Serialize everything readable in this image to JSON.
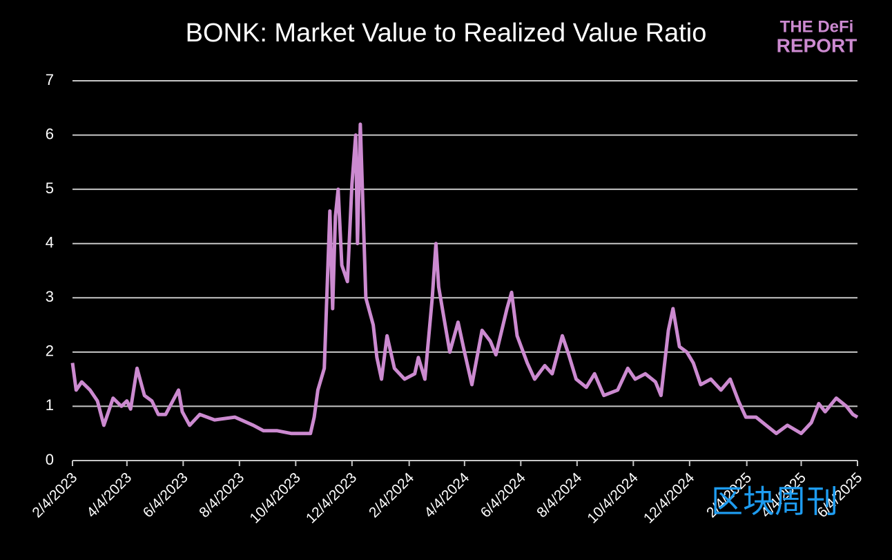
{
  "chart_data": {
    "type": "line",
    "title": "BONK: Market Value to Realized Value Ratio",
    "logo": [
      "THE DeFi",
      "REPORT"
    ],
    "watermark": "区块周刊",
    "x": [
      "2023-02-04",
      "2023-02-08",
      "2023-02-14",
      "2023-02-23",
      "2023-03-03",
      "2023-03-10",
      "2023-03-20",
      "2023-03-29",
      "2023-04-04",
      "2023-04-08",
      "2023-04-15",
      "2023-04-23",
      "2023-05-01",
      "2023-05-08",
      "2023-05-16",
      "2023-05-30",
      "2023-06-03",
      "2023-06-11",
      "2023-06-22",
      "2023-07-08",
      "2023-07-30",
      "2023-08-19",
      "2023-08-30",
      "2023-09-14",
      "2023-09-29",
      "2023-10-12",
      "2023-10-20",
      "2023-10-24",
      "2023-10-28",
      "2023-11-04",
      "2023-11-10",
      "2023-11-13",
      "2023-11-16",
      "2023-11-19",
      "2023-11-23",
      "2023-11-29",
      "2023-12-04",
      "2023-12-08",
      "2023-12-10",
      "2023-12-13",
      "2023-12-19",
      "2023-12-27",
      "2023-12-31",
      "2024-01-05",
      "2024-01-11",
      "2024-01-19",
      "2024-01-30",
      "2024-02-10",
      "2024-02-14",
      "2024-02-21",
      "2024-02-29",
      "2024-03-04",
      "2024-03-07",
      "2024-03-15",
      "2024-03-19",
      "2024-03-28",
      "2024-04-04",
      "2024-04-12",
      "2024-04-23",
      "2024-05-02",
      "2024-05-08",
      "2024-05-20",
      "2024-05-25",
      "2024-05-31",
      "2024-06-11",
      "2024-06-19",
      "2024-06-30",
      "2024-07-08",
      "2024-07-19",
      "2024-07-26",
      "2024-08-03",
      "2024-08-14",
      "2024-08-23",
      "2024-09-02",
      "2024-09-17",
      "2024-09-28",
      "2024-10-06",
      "2024-10-17",
      "2024-10-28",
      "2024-11-03",
      "2024-11-11",
      "2024-11-16",
      "2024-11-23",
      "2024-12-01",
      "2024-12-08",
      "2024-12-16",
      "2024-12-27",
      "2025-01-07",
      "2025-01-17",
      "2025-01-26",
      "2025-02-03",
      "2025-02-14",
      "2025-02-25",
      "2025-03-08",
      "2025-03-20",
      "2025-04-04",
      "2025-04-15",
      "2025-04-23",
      "2025-04-30",
      "2025-05-12",
      "2025-05-23",
      "2025-05-30",
      "2025-06-04"
    ],
    "series": [
      {
        "name": "MVRV",
        "color": "#cc8ad0",
        "values": [
          1.8,
          1.3,
          1.45,
          1.3,
          1.1,
          0.65,
          1.15,
          1.0,
          1.1,
          0.95,
          1.7,
          1.2,
          1.1,
          0.85,
          0.85,
          1.3,
          0.9,
          0.65,
          0.85,
          0.75,
          0.8,
          0.65,
          0.55,
          0.55,
          0.5,
          0.5,
          0.5,
          0.8,
          1.3,
          1.7,
          4.6,
          2.8,
          4.5,
          5.0,
          3.6,
          3.3,
          5.1,
          6.0,
          4.0,
          6.2,
          3.0,
          2.5,
          1.9,
          1.5,
          2.3,
          1.7,
          1.5,
          1.6,
          1.9,
          1.5,
          3.0,
          4.0,
          3.2,
          2.4,
          2.0,
          2.55,
          2.0,
          1.4,
          2.4,
          2.2,
          1.95,
          2.8,
          3.1,
          2.3,
          1.8,
          1.5,
          1.75,
          1.6,
          2.3,
          1.95,
          1.5,
          1.35,
          1.6,
          1.2,
          1.3,
          1.7,
          1.5,
          1.6,
          1.45,
          1.2,
          2.4,
          2.8,
          2.1,
          2.0,
          1.8,
          1.4,
          1.5,
          1.3,
          1.5,
          1.1,
          0.8,
          0.8,
          0.65,
          0.5,
          0.65,
          0.5,
          0.7,
          1.05,
          0.9,
          1.15,
          1.0,
          0.85,
          0.8
        ]
      }
    ],
    "xlim": [
      "2023-02-04",
      "2025-06-04"
    ],
    "xticks": [
      {
        "value": "2023-02-04",
        "label": "2/4/2023"
      },
      {
        "value": "2023-04-04",
        "label": "4/4/2023"
      },
      {
        "value": "2023-06-04",
        "label": "6/4/2023"
      },
      {
        "value": "2023-08-04",
        "label": "8/4/2023"
      },
      {
        "value": "2023-10-04",
        "label": "10/4/2023"
      },
      {
        "value": "2023-12-04",
        "label": "12/4/2023"
      },
      {
        "value": "2024-02-04",
        "label": "2/4/2024"
      },
      {
        "value": "2024-04-04",
        "label": "4/4/2024"
      },
      {
        "value": "2024-06-04",
        "label": "6/4/2024"
      },
      {
        "value": "2024-08-04",
        "label": "8/4/2024"
      },
      {
        "value": "2024-10-04",
        "label": "10/4/2024"
      },
      {
        "value": "2024-12-04",
        "label": "12/4/2024"
      },
      {
        "value": "2025-02-04",
        "label": "2/4/2025"
      },
      {
        "value": "2025-04-04",
        "label": "4/4/2025"
      },
      {
        "value": "2025-06-04",
        "label": "6/4/2025"
      }
    ],
    "ylim": [
      0,
      7
    ],
    "yticks": [
      0,
      1,
      2,
      3,
      4,
      5,
      6,
      7
    ],
    "grid": true
  }
}
